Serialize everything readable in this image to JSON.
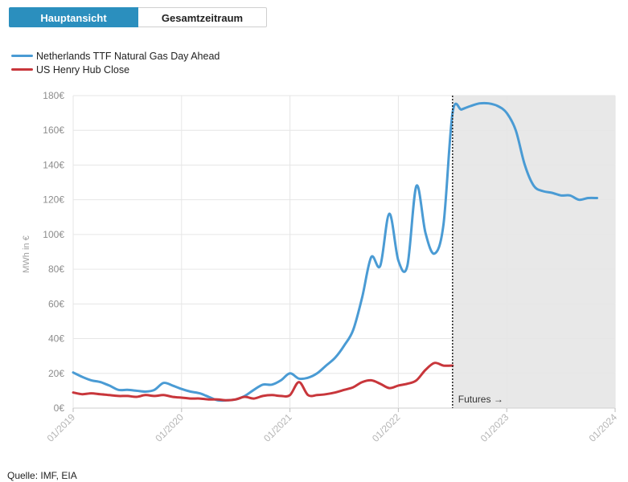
{
  "tabs": [
    {
      "label": "Hauptansicht",
      "active": true
    },
    {
      "label": "Gesamtzeitraum",
      "active": false
    }
  ],
  "source": "Quelle: IMF, EIA",
  "colors": {
    "ttf": "#4a9bd4",
    "henry": "#c8363b",
    "futures_bg": "#e8e8e8",
    "tab_active": "#2b8fbe"
  },
  "chart_data": {
    "type": "line",
    "ylabel": "MWh in €",
    "ylim": [
      0,
      180
    ],
    "yticks": [
      0,
      20,
      40,
      60,
      80,
      100,
      120,
      140,
      160,
      180
    ],
    "ytick_labels": [
      "0€",
      "20€",
      "40€",
      "60€",
      "80€",
      "100€",
      "120€",
      "140€",
      "160€",
      "180€"
    ],
    "xlim": [
      "2019-01",
      "2024-01"
    ],
    "xticks": [
      "2019-01",
      "2020-01",
      "2021-01",
      "2022-01",
      "2023-01",
      "2024-01"
    ],
    "xtick_labels": [
      "01/2019",
      "01/2020",
      "01/2021",
      "01/2022",
      "01/2023",
      "01/2024"
    ],
    "futures_start": "2022-07",
    "futures_label": "Futures →",
    "grid": true,
    "legend_position": "top-left",
    "series": [
      {
        "name": "Netherlands TTF Natural Gas Day Ahead",
        "color": "#4a9bd4",
        "points": [
          [
            "2019-01",
            20.5
          ],
          [
            "2019-02",
            18
          ],
          [
            "2019-03",
            16
          ],
          [
            "2019-04",
            15
          ],
          [
            "2019-05",
            13
          ],
          [
            "2019-06",
            10.5
          ],
          [
            "2019-07",
            10.5
          ],
          [
            "2019-08",
            10
          ],
          [
            "2019-09",
            9.5
          ],
          [
            "2019-10",
            10.5
          ],
          [
            "2019-11",
            14.5
          ],
          [
            "2019-12",
            13
          ],
          [
            "2020-01",
            11
          ],
          [
            "2020-02",
            9.5
          ],
          [
            "2020-03",
            8.5
          ],
          [
            "2020-04",
            6.5
          ],
          [
            "2020-05",
            4.5
          ],
          [
            "2020-06",
            4.5
          ],
          [
            "2020-07",
            5
          ],
          [
            "2020-08",
            7
          ],
          [
            "2020-09",
            10.5
          ],
          [
            "2020-10",
            13.5
          ],
          [
            "2020-11",
            13.5
          ],
          [
            "2020-12",
            16
          ],
          [
            "2021-01",
            20
          ],
          [
            "2021-02",
            17
          ],
          [
            "2021-03",
            17.5
          ],
          [
            "2021-04",
            20
          ],
          [
            "2021-05",
            24.5
          ],
          [
            "2021-06",
            29
          ],
          [
            "2021-07",
            36
          ],
          [
            "2021-08",
            45
          ],
          [
            "2021-09",
            64
          ],
          [
            "2021-10",
            87
          ],
          [
            "2021-11",
            82
          ],
          [
            "2021-12",
            112
          ],
          [
            "2022-01",
            85
          ],
          [
            "2022-02",
            82
          ],
          [
            "2022-03",
            128
          ],
          [
            "2022-04",
            101
          ],
          [
            "2022-05",
            89
          ],
          [
            "2022-06",
            106
          ],
          [
            "2022-07",
            170
          ],
          [
            "2022-08",
            172
          ],
          [
            "2022-09",
            174
          ],
          [
            "2022-10",
            175.5
          ],
          [
            "2022-11",
            175.5
          ],
          [
            "2022-12",
            174
          ],
          [
            "2023-01",
            170
          ],
          [
            "2023-02",
            160
          ],
          [
            "2023-03",
            140
          ],
          [
            "2023-04",
            128
          ],
          [
            "2023-05",
            125
          ],
          [
            "2023-06",
            124
          ],
          [
            "2023-07",
            122.5
          ],
          [
            "2023-08",
            122.5
          ],
          [
            "2023-09",
            120
          ],
          [
            "2023-10",
            121
          ],
          [
            "2023-11",
            121
          ]
        ]
      },
      {
        "name": "US Henry Hub Close",
        "color": "#c8363b",
        "points": [
          [
            "2019-01",
            9
          ],
          [
            "2019-02",
            8
          ],
          [
            "2019-03",
            8.5
          ],
          [
            "2019-04",
            8
          ],
          [
            "2019-05",
            7.5
          ],
          [
            "2019-06",
            7
          ],
          [
            "2019-07",
            7
          ],
          [
            "2019-08",
            6.5
          ],
          [
            "2019-09",
            7.5
          ],
          [
            "2019-10",
            7
          ],
          [
            "2019-11",
            7.5
          ],
          [
            "2019-12",
            6.5
          ],
          [
            "2020-01",
            6
          ],
          [
            "2020-02",
            5.5
          ],
          [
            "2020-03",
            5.5
          ],
          [
            "2020-04",
            5
          ],
          [
            "2020-05",
            5
          ],
          [
            "2020-06",
            4.5
          ],
          [
            "2020-07",
            5
          ],
          [
            "2020-08",
            6.5
          ],
          [
            "2020-09",
            5.5
          ],
          [
            "2020-10",
            7
          ],
          [
            "2020-11",
            7.5
          ],
          [
            "2020-12",
            7
          ],
          [
            "2021-01",
            7.5
          ],
          [
            "2021-02",
            15
          ],
          [
            "2021-03",
            7.5
          ],
          [
            "2021-04",
            7.5
          ],
          [
            "2021-05",
            8
          ],
          [
            "2021-06",
            9
          ],
          [
            "2021-07",
            10.5
          ],
          [
            "2021-08",
            12
          ],
          [
            "2021-09",
            15
          ],
          [
            "2021-10",
            16
          ],
          [
            "2021-11",
            14
          ],
          [
            "2021-12",
            11.5
          ],
          [
            "2022-01",
            13
          ],
          [
            "2022-02",
            14
          ],
          [
            "2022-03",
            16
          ],
          [
            "2022-04",
            22
          ],
          [
            "2022-05",
            26
          ],
          [
            "2022-06",
            24.5
          ],
          [
            "2022-07",
            24.5
          ]
        ]
      }
    ]
  }
}
